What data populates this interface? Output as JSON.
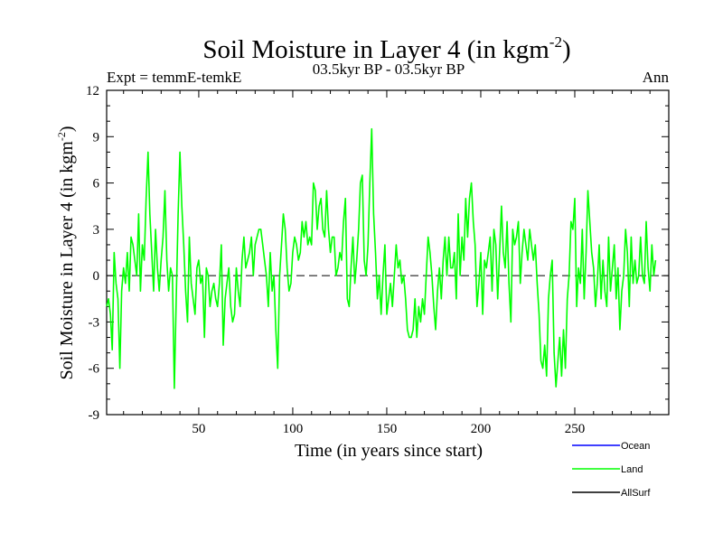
{
  "chart_data": {
    "type": "line",
    "title": "Soil Moisture in Layer 4 (in kgm",
    "title_sup": "-2",
    "title_close": ")",
    "subtitle": "03.5kyr BP - 03.5kyr BP",
    "left_label": "Expt = temmE-temkE",
    "right_label": "Ann",
    "xlabel": "Time (in years since start)",
    "ylabel": "Soil Moisture in Layer 4 (in kgm",
    "ylabel_sup": "-2",
    "ylabel_close": ")",
    "xlim": [
      1,
      300
    ],
    "ylim": [
      -9,
      12
    ],
    "x_ticks": [
      50,
      100,
      150,
      200,
      250
    ],
    "y_ticks": [
      12,
      9,
      6,
      3,
      0,
      -3,
      -6,
      -9
    ],
    "zero_line": true,
    "series": [
      {
        "name": "Land",
        "color": "#00ff00",
        "x_start": 1,
        "x_step": 1,
        "values": [
          -2.0,
          -1.5,
          -2.5,
          -4.8,
          1.5,
          -0.5,
          -1.5,
          -6.0,
          -1.0,
          0.5,
          -0.5,
          1.5,
          -1.0,
          2.5,
          2.0,
          1.0,
          0.0,
          4.0,
          -1.0,
          2.0,
          1.0,
          5.0,
          8.0,
          4.0,
          1.5,
          -1.0,
          3.0,
          0.5,
          -1.0,
          1.0,
          2.5,
          5.5,
          1.0,
          -1.0,
          0.5,
          0.0,
          -7.3,
          -1.5,
          4.0,
          8.0,
          4.5,
          2.0,
          -1.0,
          -3.0,
          2.5,
          -0.5,
          -1.5,
          -2.5,
          0.5,
          1.0,
          -0.5,
          0.0,
          -4.0,
          0.5,
          0.0,
          -2.0,
          -1.0,
          -0.5,
          -1.5,
          -2.0,
          -0.5,
          2.0,
          -4.5,
          -1.5,
          -0.5,
          0.5,
          -2.0,
          -3.0,
          -2.5,
          0.5,
          -1.0,
          -2.0,
          1.0,
          2.5,
          0.5,
          1.0,
          1.5,
          2.5,
          0.0,
          2.0,
          2.5,
          3.0,
          3.0,
          2.0,
          1.0,
          0.0,
          -2.0,
          1.5,
          -1.0,
          0.0,
          -3.5,
          -6.0,
          0.0,
          2.0,
          4.0,
          3.0,
          0.5,
          -1.0,
          -0.5,
          1.5,
          2.5,
          2.0,
          1.0,
          1.5,
          3.5,
          2.5,
          3.5,
          2.0,
          2.5,
          2.0,
          6.0,
          5.5,
          3.0,
          4.5,
          5.0,
          3.0,
          2.5,
          5.5,
          3.0,
          1.5,
          2.5,
          2.5,
          0.0,
          0.5,
          1.5,
          1.0,
          3.5,
          5.0,
          -1.5,
          -2.0,
          0.5,
          2.5,
          -0.5,
          1.0,
          3.0,
          6.0,
          6.5,
          1.0,
          0.0,
          2.0,
          6.0,
          9.5,
          4.0,
          1.5,
          -1.5,
          0.0,
          -2.5,
          0.0,
          2.0,
          -2.5,
          -1.5,
          -0.5,
          -2.0,
          0.0,
          2.0,
          0.5,
          1.0,
          -0.5,
          0.0,
          -1.5,
          -3.5,
          -4.0,
          -4.0,
          -3.5,
          -1.5,
          -4.0,
          -2.0,
          -3.0,
          -1.5,
          -2.5,
          0.0,
          2.5,
          1.5,
          0.0,
          -2.0,
          -3.5,
          -1.0,
          0.5,
          -1.5,
          1.0,
          2.5,
          0.0,
          2.5,
          0.5,
          0.5,
          1.5,
          -1.5,
          4.0,
          0.0,
          2.5,
          1.0,
          5.0,
          2.5,
          5.0,
          6.0,
          3.5,
          2.0,
          -2.0,
          -0.5,
          1.5,
          -2.5,
          1.0,
          0.5,
          1.5,
          2.5,
          -1.0,
          3.0,
          2.0,
          -1.5,
          1.5,
          4.5,
          1.5,
          0.5,
          3.5,
          -0.5,
          -3.0,
          3.0,
          2.0,
          2.5,
          3.5,
          -0.5,
          1.5,
          3.0,
          2.0,
          1.0,
          3.0,
          2.0,
          1.0,
          2.0,
          -0.5,
          -2.5,
          -5.5,
          -6.0,
          -4.5,
          -6.5,
          -1.5,
          0.0,
          1.0,
          -5.0,
          -7.2,
          -5.5,
          -4.0,
          -6.5,
          -3.5,
          -6.0,
          -1.5,
          0.0,
          3.5,
          3.0,
          5.0,
          -2.0,
          0.5,
          -0.5,
          3.0,
          -1.5,
          1.5,
          5.5,
          3.5,
          1.5,
          0.5,
          -2.0,
          -0.5,
          2.0,
          -1.5,
          1.0,
          -1.0,
          -2.0,
          2.5,
          -1.0,
          0.5,
          2.0,
          -1.5,
          0.5,
          -3.5,
          -1.0,
          0.0,
          3.0,
          1.5,
          -2.0,
          2.5,
          -0.5,
          1.0,
          -0.5,
          0.0,
          2.5,
          0.0,
          -0.5,
          3.5,
          0.5,
          -1.0,
          2.0,
          0.0,
          1.0
        ]
      }
    ],
    "legend": [
      {
        "name": "Ocean",
        "color": "#0000ff"
      },
      {
        "name": "Land",
        "color": "#00ff00"
      },
      {
        "name": "AllSurf",
        "color": "#000000"
      }
    ],
    "legend_position": "bottom-right"
  }
}
